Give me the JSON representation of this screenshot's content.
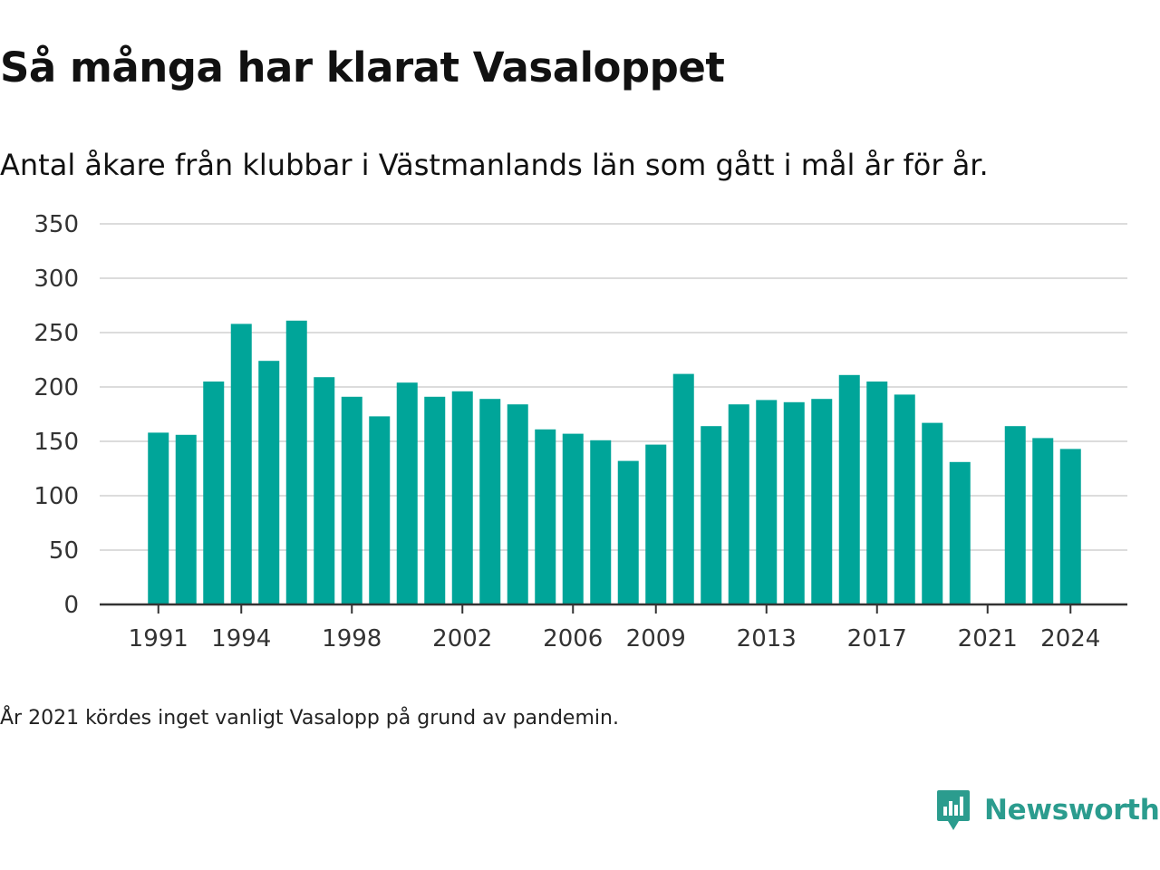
{
  "header": {
    "title": "Så många har klarat Vasaloppet",
    "subtitle": "Antal åkare från klubbar i Västmanlands län som gått i mål år för år."
  },
  "footnote": "År 2021 kördes inget vanligt Vasalopp på grund av pandemin.",
  "brand": {
    "name": "Newsworthy",
    "color": "#2b9c8e",
    "icon": "newsworthy-logo-icon"
  },
  "colors": {
    "bar": "#00a599",
    "grid": "#dcdcdc",
    "axis": "#333333"
  },
  "chart_data": {
    "type": "bar",
    "categories": [
      1991,
      1992,
      1993,
      1994,
      1995,
      1996,
      1997,
      1998,
      1999,
      2000,
      2001,
      2002,
      2003,
      2004,
      2005,
      2006,
      2007,
      2008,
      2009,
      2010,
      2011,
      2012,
      2013,
      2014,
      2015,
      2016,
      2017,
      2018,
      2019,
      2020,
      2021,
      2022,
      2023,
      2024
    ],
    "values": [
      158,
      156,
      205,
      258,
      224,
      261,
      209,
      191,
      173,
      204,
      191,
      196,
      189,
      184,
      161,
      157,
      151,
      132,
      147,
      212,
      164,
      184,
      188,
      186,
      189,
      211,
      205,
      193,
      167,
      131,
      null,
      164,
      153,
      143
    ],
    "xticks": [
      "1991",
      "1994",
      "1998",
      "2002",
      "2006",
      "2009",
      "2013",
      "2017",
      "2021",
      "2024"
    ],
    "yticks": [
      "0",
      "50",
      "100",
      "150",
      "200",
      "250",
      "300",
      "350"
    ],
    "ylim": [
      0,
      350
    ],
    "grid": true,
    "xlabel": "",
    "ylabel": ""
  }
}
